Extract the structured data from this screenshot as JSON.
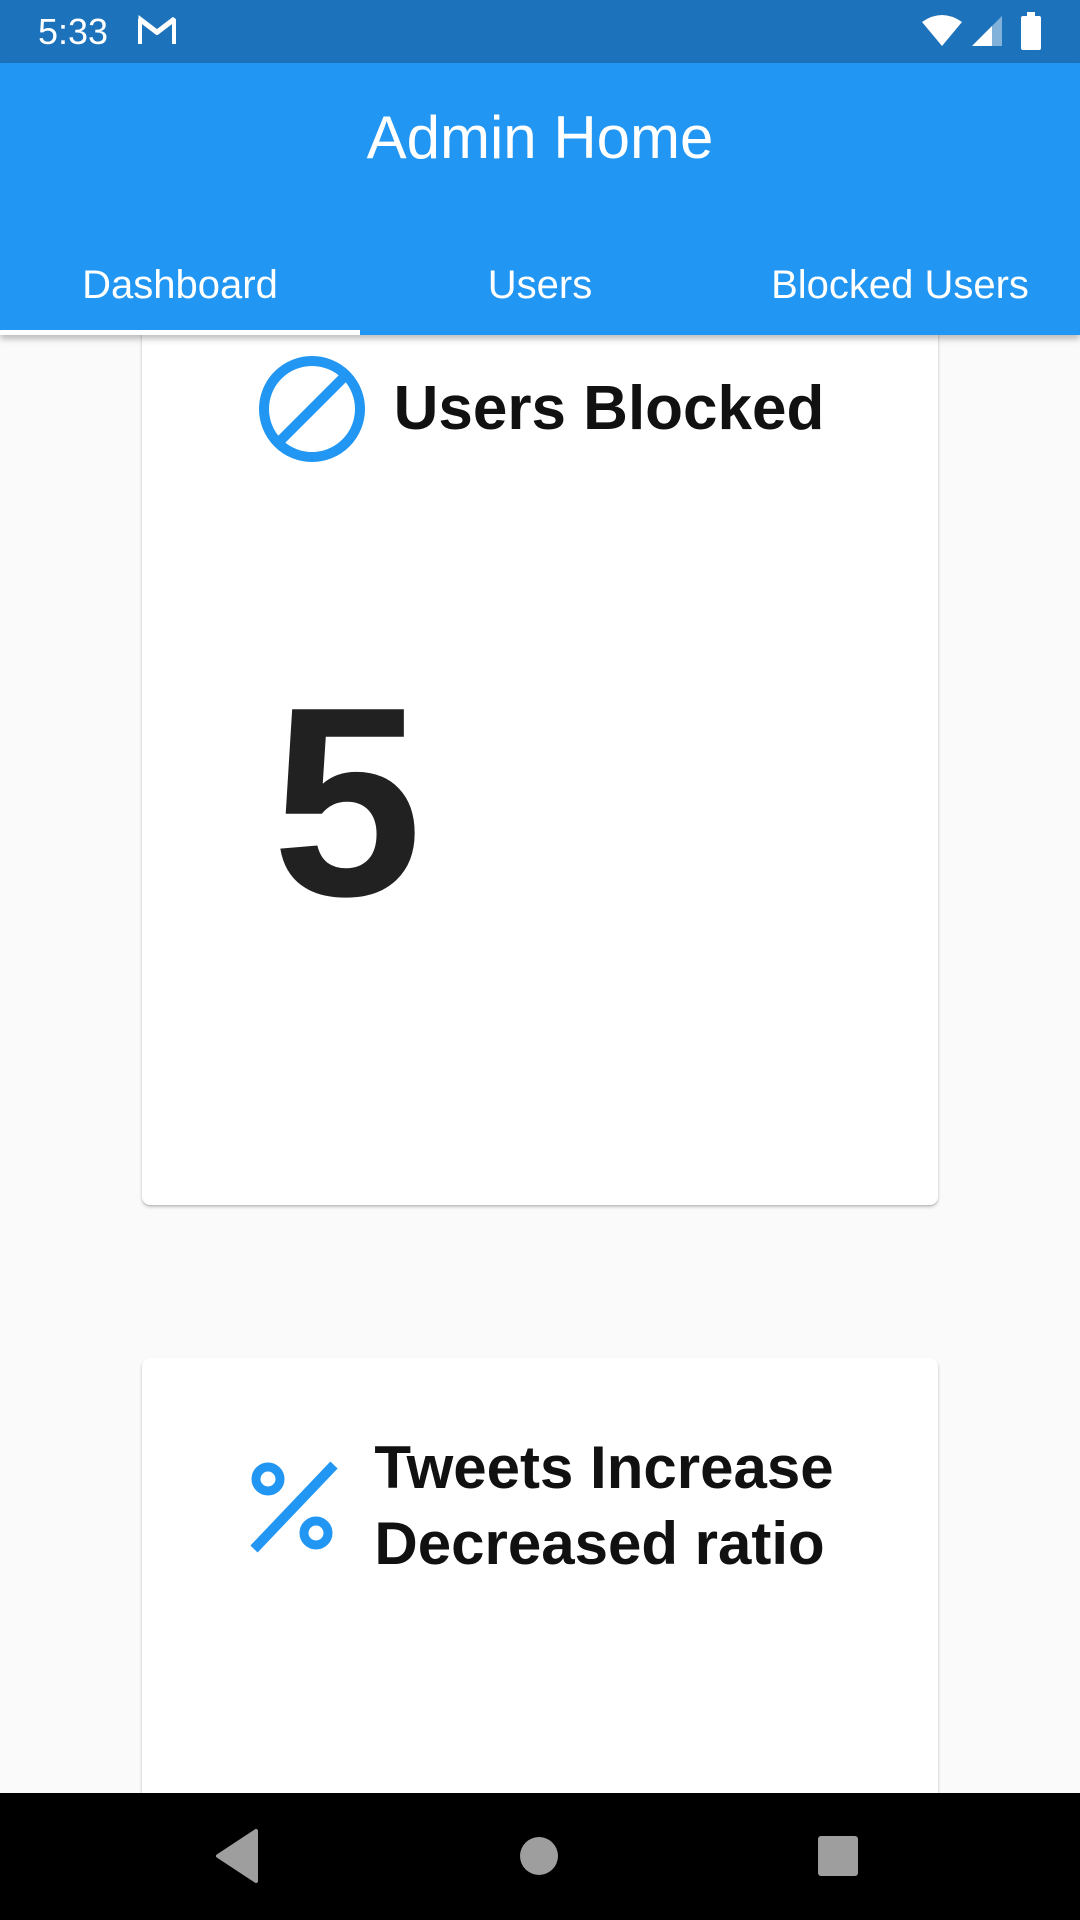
{
  "status_bar": {
    "time": "5:33",
    "icons": [
      "gmail-icon",
      "wifi-icon",
      "signal-icon",
      "battery-icon"
    ],
    "background": "#1c72bb"
  },
  "app_bar": {
    "title": "Admin Home",
    "background": "#2196f3"
  },
  "tabs": [
    {
      "label": "Dashboard",
      "active": true
    },
    {
      "label": "Users",
      "active": false
    },
    {
      "label": "Blocked Users",
      "active": false
    }
  ],
  "cards": {
    "blocked": {
      "icon": "block-icon",
      "title": "Users Blocked",
      "value": "5"
    },
    "tweets": {
      "icon": "percent-icon",
      "title_line1": "Tweets Increase",
      "title_line2": "Decreased ratio"
    }
  },
  "nav_bar": {
    "buttons": [
      "back-icon",
      "home-icon",
      "recents-icon"
    ]
  },
  "colors": {
    "accent": "#2196f3",
    "icon": "#2196f3",
    "text_dark": "#111111"
  }
}
